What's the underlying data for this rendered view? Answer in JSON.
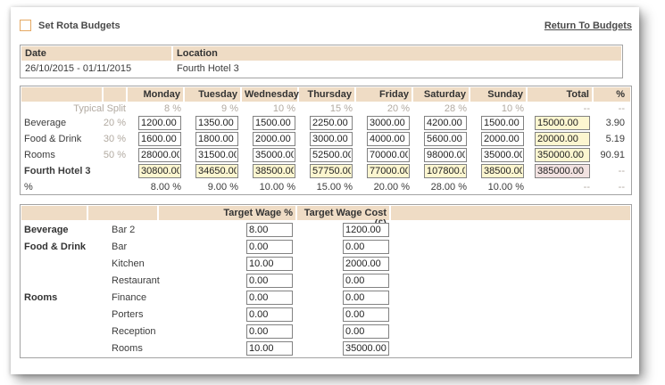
{
  "header": {
    "title": "Set Rota Budgets",
    "return_link": "Return To Budgets"
  },
  "period": {
    "date_label": "Date",
    "location_label": "Location",
    "date_value": "26/10/2015 - 01/11/2015",
    "location_value": "Fourth Hotel 3"
  },
  "budget_table": {
    "day_headers": [
      "Monday",
      "Tuesday",
      "Wednesday",
      "Thursday",
      "Friday",
      "Saturday",
      "Sunday",
      "Total",
      "%"
    ],
    "typical_split": {
      "label": "Typical Split",
      "values": [
        "8 %",
        "9 %",
        "10 %",
        "15 %",
        "20 %",
        "28 %",
        "10 %"
      ],
      "total": "--",
      "pct": "--"
    },
    "rows": [
      {
        "label": "Beverage",
        "split": "20 %",
        "inputs": [
          "1200.00",
          "1350.00",
          "1500.00",
          "2250.00",
          "3000.00",
          "4200.00",
          "1500.00"
        ],
        "total": "15000.00",
        "pct": "3.90"
      },
      {
        "label": "Food & Drink",
        "split": "30 %",
        "inputs": [
          "1600.00",
          "1800.00",
          "2000.00",
          "3000.00",
          "4000.00",
          "5600.00",
          "2000.00"
        ],
        "total": "20000.00",
        "pct": "5.19"
      },
      {
        "label": "Rooms",
        "split": "50 %",
        "inputs": [
          "28000.00",
          "31500.00",
          "35000.00",
          "52500.00",
          "70000.00",
          "98000.00",
          "35000.00"
        ],
        "total": "350000.00",
        "pct": "90.91"
      }
    ],
    "total_row": {
      "label": "Fourth Hotel 3",
      "inputs": [
        "30800.00",
        "34650.00",
        "38500.00",
        "57750.00",
        "77000.00",
        "107800.00",
        "38500.00"
      ],
      "total": "385000.00",
      "pct": "--"
    },
    "percent_row": {
      "label": "%",
      "values": [
        "8.00 %",
        "9.00 %",
        "10.00 %",
        "15.00 %",
        "20.00 %",
        "28.00 %",
        "10.00 %"
      ],
      "total": "--",
      "pct": "--"
    }
  },
  "wage_table": {
    "pct_header": "Target Wage %",
    "cost_header": "Target Wage Cost (£)",
    "rows": [
      {
        "category": "Beverage",
        "dept": "Bar 2",
        "pct": "8.00",
        "cost": "1200.00"
      },
      {
        "category": "Food & Drink",
        "dept": "Bar",
        "pct": "0.00",
        "cost": "0.00"
      },
      {
        "category": "",
        "dept": "Kitchen",
        "pct": "10.00",
        "cost": "2000.00"
      },
      {
        "category": "",
        "dept": "Restaurant",
        "pct": "0.00",
        "cost": "0.00"
      },
      {
        "category": "Rooms",
        "dept": "Finance",
        "pct": "0.00",
        "cost": "0.00"
      },
      {
        "category": "",
        "dept": "Porters",
        "pct": "0.00",
        "cost": "0.00"
      },
      {
        "category": "",
        "dept": "Reception",
        "pct": "0.00",
        "cost": "0.00"
      },
      {
        "category": "",
        "dept": "Rooms",
        "pct": "10.00",
        "cost": "35000.00"
      }
    ]
  },
  "colors": {
    "header_tan": "#efdcc5",
    "highlight_yellow": "#fcf6d0",
    "highlight_pink": "#f2e2e1",
    "muted_gray": "#b2aaa1"
  }
}
